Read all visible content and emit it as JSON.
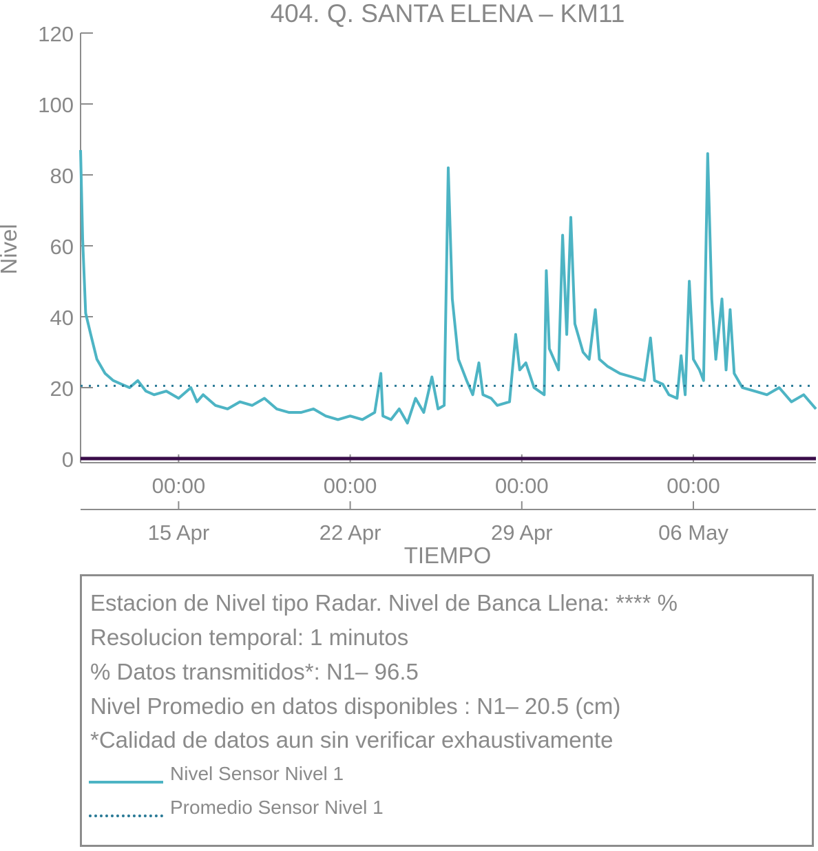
{
  "chart_data": {
    "type": "line",
    "title": "404. Q. SANTA ELENA – KM11",
    "xlabel": "TIEMPO",
    "ylabel": "Nivel",
    "ylim": [
      0,
      120
    ],
    "yticks": [
      0,
      20,
      40,
      60,
      80,
      100,
      120
    ],
    "xlim": [
      "2024-04-11T00:00",
      "2024-05-11T00:00"
    ],
    "xticks": [
      {
        "at": "2024-04-15T00:00",
        "time": "00:00",
        "date": "15 Apr"
      },
      {
        "at": "2024-04-22T00:00",
        "time": "00:00",
        "date": "22 Apr"
      },
      {
        "at": "2024-04-29T00:00",
        "time": "00:00",
        "date": "29 Apr"
      },
      {
        "at": "2024-05-06T00:00",
        "time": "00:00",
        "date": "06 May"
      }
    ],
    "grid": false,
    "colors": {
      "nivel": "#4db4c4",
      "promedio": "#2a7a96",
      "baseline": "#3a0d4a",
      "axis": "#8c8c8c",
      "text": "#888888"
    },
    "series": [
      {
        "name": "Nivel Sensor Nivel 1",
        "style": "solid",
        "points": [
          [
            "2024-04-11T00:00",
            87
          ],
          [
            "2024-04-11T02:00",
            62
          ],
          [
            "2024-04-11T05:00",
            41
          ],
          [
            "2024-04-11T10:00",
            35
          ],
          [
            "2024-04-11T16:00",
            28
          ],
          [
            "2024-04-12T00:00",
            24
          ],
          [
            "2024-04-12T08:00",
            22
          ],
          [
            "2024-04-12T16:00",
            21
          ],
          [
            "2024-04-13T00:00",
            20
          ],
          [
            "2024-04-13T08:00",
            22
          ],
          [
            "2024-04-13T16:00",
            19
          ],
          [
            "2024-04-14T00:00",
            18
          ],
          [
            "2024-04-14T12:00",
            19
          ],
          [
            "2024-04-15T00:00",
            17
          ],
          [
            "2024-04-15T12:00",
            20
          ],
          [
            "2024-04-15T18:00",
            16
          ],
          [
            "2024-04-16T00:00",
            18
          ],
          [
            "2024-04-16T12:00",
            15
          ],
          [
            "2024-04-17T00:00",
            14
          ],
          [
            "2024-04-17T12:00",
            16
          ],
          [
            "2024-04-18T00:00",
            15
          ],
          [
            "2024-04-18T12:00",
            17
          ],
          [
            "2024-04-19T00:00",
            14
          ],
          [
            "2024-04-19T12:00",
            13
          ],
          [
            "2024-04-20T00:00",
            13
          ],
          [
            "2024-04-20T12:00",
            14
          ],
          [
            "2024-04-21T00:00",
            12
          ],
          [
            "2024-04-21T12:00",
            11
          ],
          [
            "2024-04-22T00:00",
            12
          ],
          [
            "2024-04-22T12:00",
            11
          ],
          [
            "2024-04-23T00:00",
            13
          ],
          [
            "2024-04-23T06:00",
            24
          ],
          [
            "2024-04-23T08:00",
            12
          ],
          [
            "2024-04-23T16:00",
            11
          ],
          [
            "2024-04-24T00:00",
            14
          ],
          [
            "2024-04-24T08:00",
            10
          ],
          [
            "2024-04-24T16:00",
            17
          ],
          [
            "2024-04-25T00:00",
            13
          ],
          [
            "2024-04-25T08:00",
            23
          ],
          [
            "2024-04-25T14:00",
            14
          ],
          [
            "2024-04-25T20:00",
            15
          ],
          [
            "2024-04-26T00:00",
            82
          ],
          [
            "2024-04-26T04:00",
            45
          ],
          [
            "2024-04-26T10:00",
            28
          ],
          [
            "2024-04-26T18:00",
            22
          ],
          [
            "2024-04-27T00:00",
            18
          ],
          [
            "2024-04-27T06:00",
            27
          ],
          [
            "2024-04-27T10:00",
            18
          ],
          [
            "2024-04-27T18:00",
            17
          ],
          [
            "2024-04-28T00:00",
            15
          ],
          [
            "2024-04-28T12:00",
            16
          ],
          [
            "2024-04-28T18:00",
            35
          ],
          [
            "2024-04-28T22:00",
            25
          ],
          [
            "2024-04-29T04:00",
            27
          ],
          [
            "2024-04-29T12:00",
            20
          ],
          [
            "2024-04-29T22:00",
            18
          ],
          [
            "2024-04-30T00:00",
            53
          ],
          [
            "2024-04-30T03:00",
            31
          ],
          [
            "2024-04-30T12:00",
            25
          ],
          [
            "2024-04-30T16:00",
            63
          ],
          [
            "2024-04-30T20:00",
            35
          ],
          [
            "2024-05-01T00:00",
            68
          ],
          [
            "2024-05-01T04:00",
            38
          ],
          [
            "2024-05-01T12:00",
            30
          ],
          [
            "2024-05-01T18:00",
            28
          ],
          [
            "2024-05-02T00:00",
            42
          ],
          [
            "2024-05-02T04:00",
            28
          ],
          [
            "2024-05-02T12:00",
            26
          ],
          [
            "2024-05-03T00:00",
            24
          ],
          [
            "2024-05-03T12:00",
            23
          ],
          [
            "2024-05-04T00:00",
            22
          ],
          [
            "2024-05-04T06:00",
            34
          ],
          [
            "2024-05-04T10:00",
            22
          ],
          [
            "2024-05-04T18:00",
            21
          ],
          [
            "2024-05-05T00:00",
            18
          ],
          [
            "2024-05-05T08:00",
            17
          ],
          [
            "2024-05-05T12:00",
            29
          ],
          [
            "2024-05-05T16:00",
            18
          ],
          [
            "2024-05-05T20:00",
            50
          ],
          [
            "2024-05-06T00:00",
            28
          ],
          [
            "2024-05-06T06:00",
            25
          ],
          [
            "2024-05-06T10:00",
            22
          ],
          [
            "2024-05-06T14:00",
            86
          ],
          [
            "2024-05-06T18:00",
            45
          ],
          [
            "2024-05-06T22:00",
            28
          ],
          [
            "2024-05-07T04:00",
            45
          ],
          [
            "2024-05-07T08:00",
            25
          ],
          [
            "2024-05-07T12:00",
            42
          ],
          [
            "2024-05-07T16:00",
            24
          ],
          [
            "2024-05-07T20:00",
            22
          ],
          [
            "2024-05-08T00:00",
            20
          ],
          [
            "2024-05-08T12:00",
            19
          ],
          [
            "2024-05-09T00:00",
            18
          ],
          [
            "2024-05-09T12:00",
            20
          ],
          [
            "2024-05-10T00:00",
            16
          ],
          [
            "2024-05-10T12:00",
            18
          ],
          [
            "2024-05-11T00:00",
            14
          ]
        ]
      },
      {
        "name": "Promedio Sensor Nivel 1",
        "style": "dotted",
        "points": [
          [
            "2024-04-11T00:00",
            20.5
          ],
          [
            "2024-05-11T00:00",
            20.5
          ]
        ]
      },
      {
        "name": "",
        "style": "solid-thick",
        "points": [
          [
            "2024-04-11T00:00",
            0
          ],
          [
            "2024-05-11T00:00",
            0
          ]
        ]
      }
    ]
  },
  "info": {
    "line1": "Estacion de Nivel tipo Radar. Nivel de Banca Llena: **** %",
    "line2": "Resolucion temporal: 1 minutos",
    "line3": "% Datos transmitidos*: N1– 96.5",
    "line4": "Nivel Promedio en datos disponibles : N1– 20.5 (cm)",
    "line5": "*Calidad de datos aun sin verificar exhaustivamente"
  },
  "legend": [
    {
      "label": "Nivel Sensor Nivel 1",
      "style": "solid"
    },
    {
      "label": "Promedio Sensor Nivel 1",
      "style": "dotted"
    }
  ]
}
